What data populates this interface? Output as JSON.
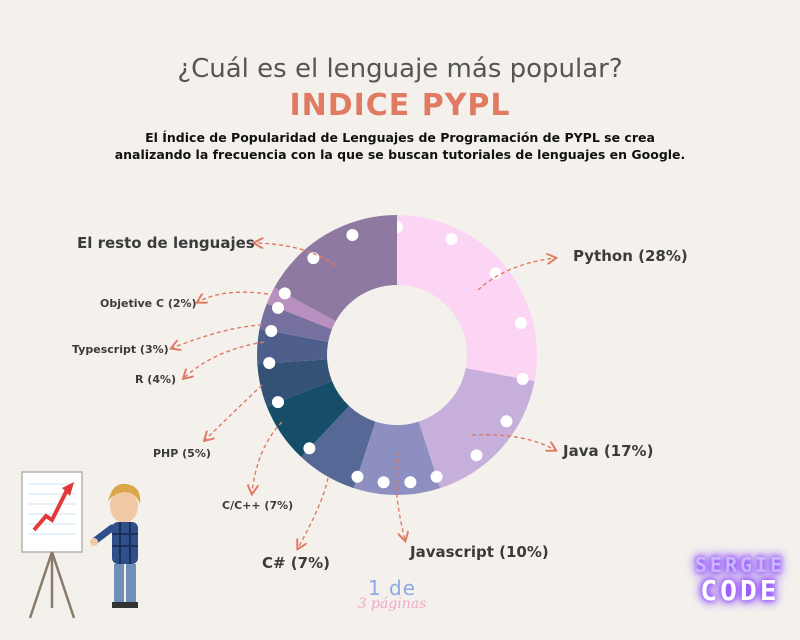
{
  "header": {
    "question": "¿Cuál es el lenguaje más popular?",
    "title": "INDICE PYPL",
    "description_line1": "El Índice de Popularidad de Lenguajes de Programación de PYPL se crea",
    "description_line2": "analizando la frecuencia con la que se buscan tutoriales de lenguajes en Google."
  },
  "chart_data": {
    "type": "pie",
    "style": "donut",
    "slices": [
      {
        "label": "Python (28%)",
        "value": 28,
        "color": "#fdd5f4"
      },
      {
        "label": "Java (17%)",
        "value": 17,
        "color": "#c7afdc"
      },
      {
        "label": "Javascript (10%)",
        "value": 10,
        "color": "#8c8fbf"
      },
      {
        "label": "C# (7%)",
        "value": 7,
        "color": "#566895"
      },
      {
        "label": "C/C++ (7%)",
        "value": 7,
        "color": "#164d68"
      },
      {
        "label": "PHP (5%)",
        "value": 5,
        "color": "#345275"
      },
      {
        "label": "R (4%)",
        "value": 4,
        "color": "#4f5f8c"
      },
      {
        "label": "Typescript (3%)",
        "value": 3,
        "color": "#76709f"
      },
      {
        "label": "Objetive C (2%)",
        "value": 2,
        "color": "#b98fbf"
      },
      {
        "label": "El resto de lenguajes",
        "value": 17,
        "color": "#8e7aa0"
      }
    ],
    "accent_color": "#e07a62"
  },
  "footer": {
    "page_number": "1 de",
    "page_word": "3 páginas",
    "brand_top": "SERGIE",
    "brand_bottom": "CODE"
  }
}
